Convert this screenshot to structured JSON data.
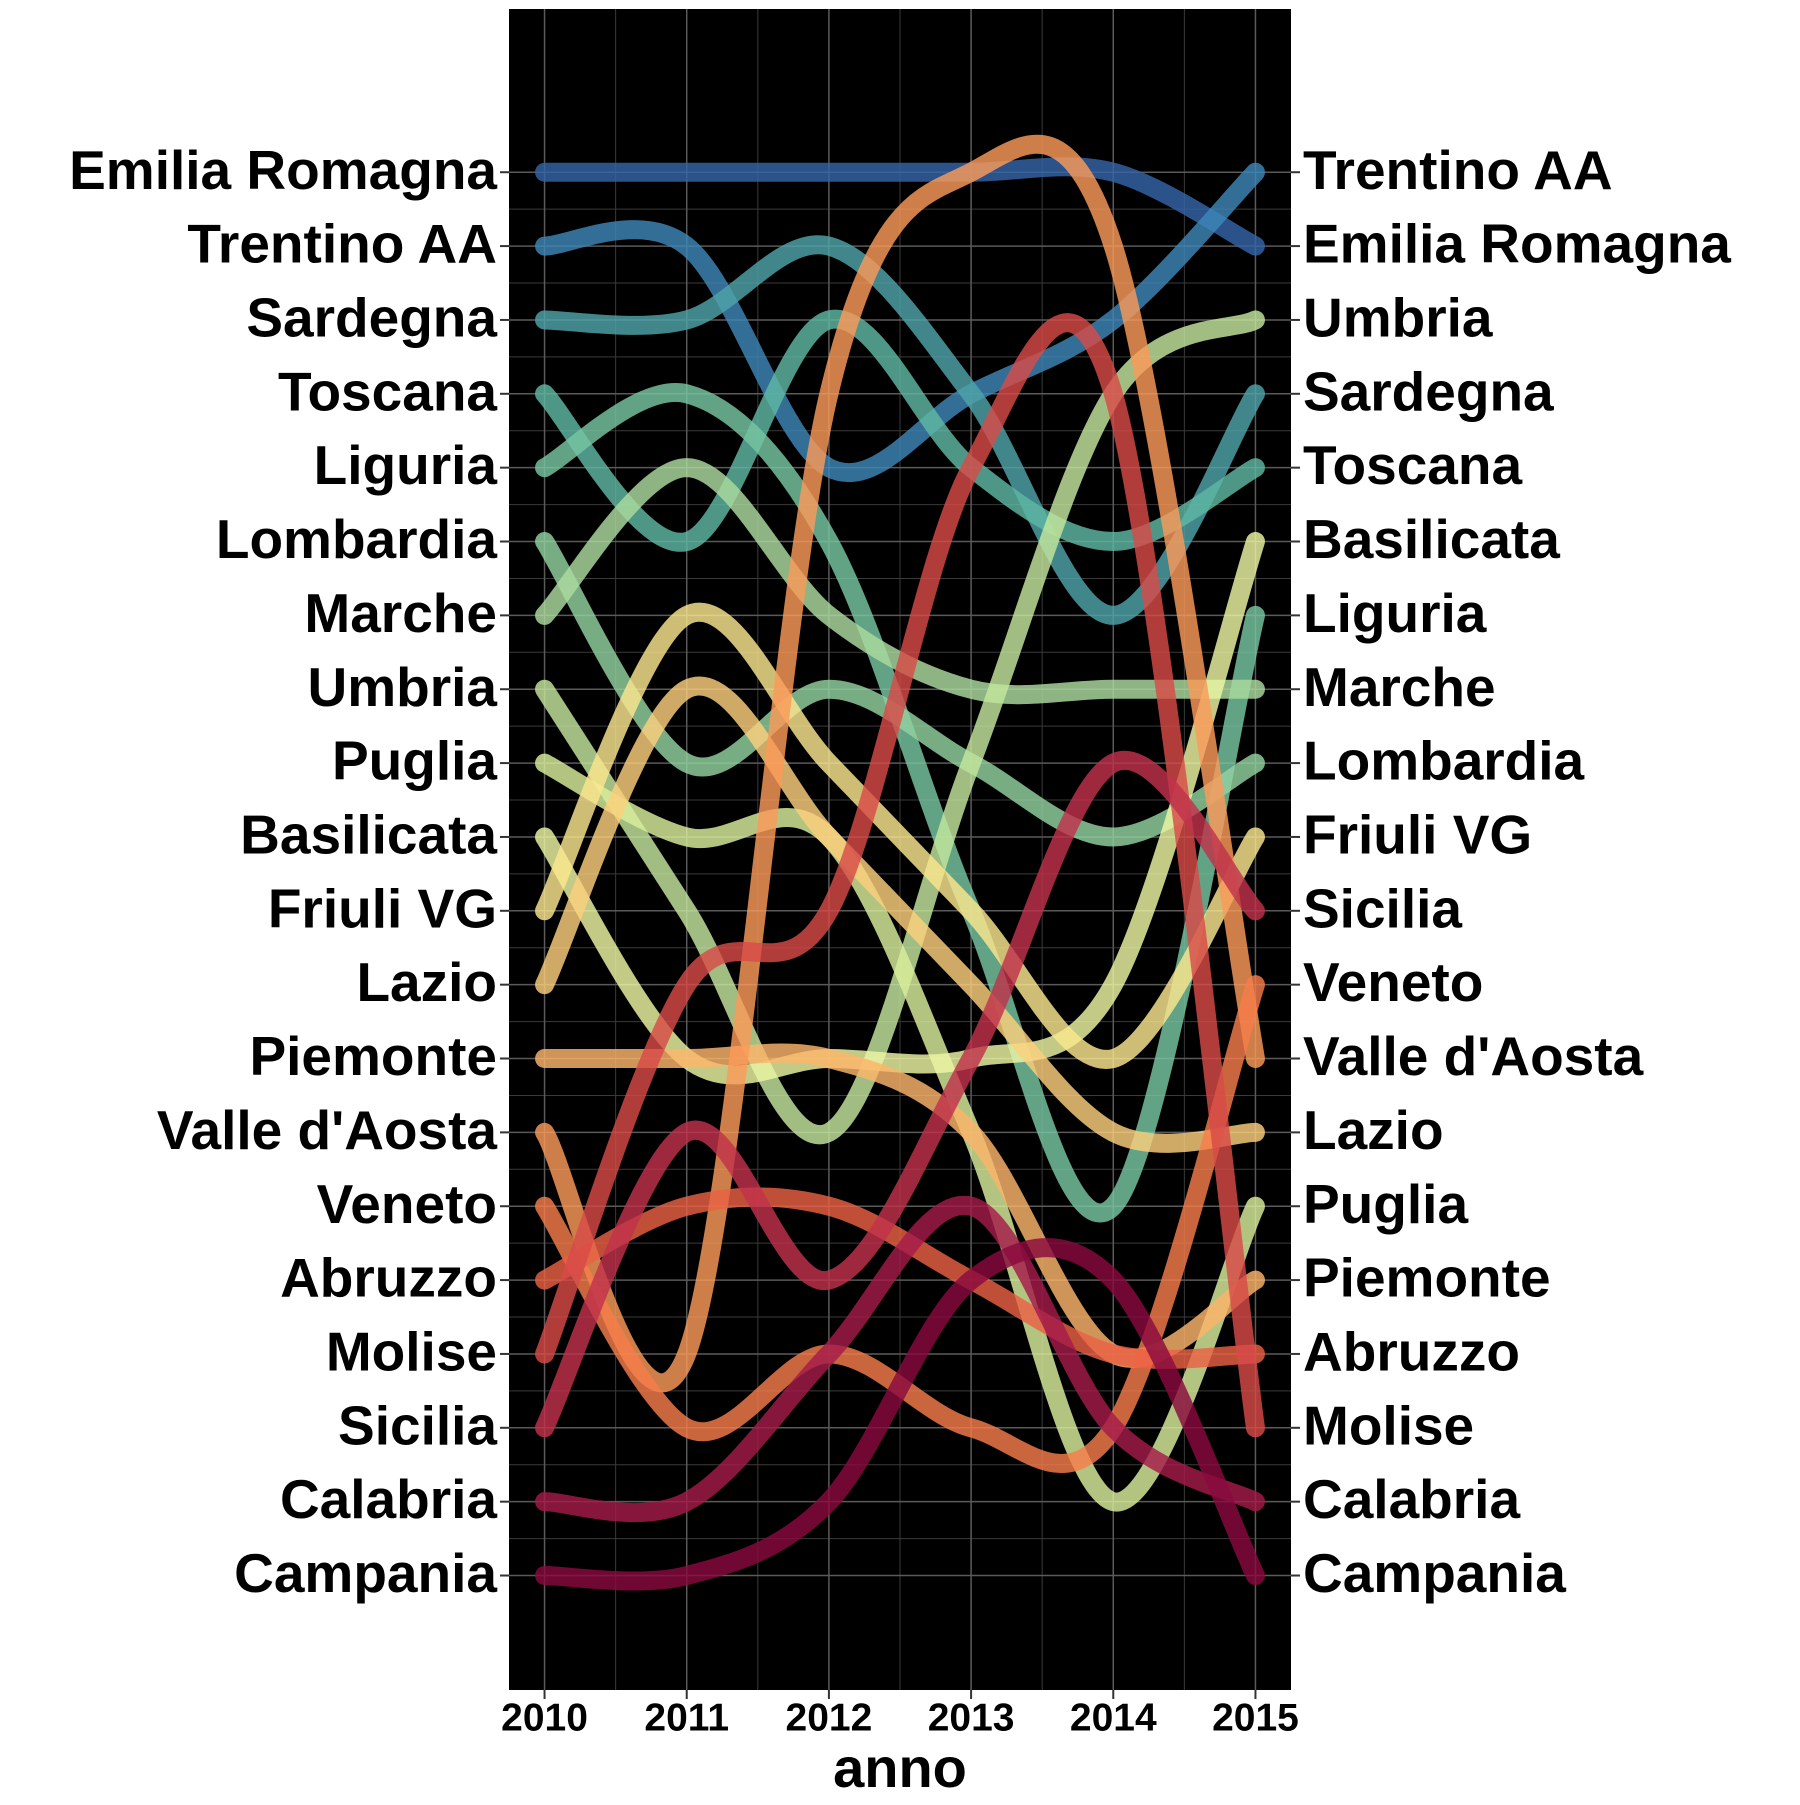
{
  "chart_data": {
    "type": "bump",
    "x_label": "anno",
    "x": [
      2010,
      2011,
      2012,
      2013,
      2014,
      2015
    ],
    "xlim": [
      2009.75,
      2015.25
    ],
    "xticks": [
      2010,
      2011,
      2012,
      2013,
      2014,
      2015
    ],
    "ylim": [
      21.55,
      -1.21
    ],
    "yticks": [
      {
        "value": 1,
        "label": "Emilia Romagna"
      },
      {
        "value": 2,
        "label": "Trentino AA"
      },
      {
        "value": 3,
        "label": "Sardegna"
      },
      {
        "value": 4,
        "label": "Toscana"
      },
      {
        "value": 5,
        "label": "Liguria"
      },
      {
        "value": 6,
        "label": "Lombardia"
      },
      {
        "value": 7,
        "label": "Marche"
      },
      {
        "value": 8,
        "label": "Umbria"
      },
      {
        "value": 9,
        "label": "Puglia"
      },
      {
        "value": 10,
        "label": "Basilicata"
      },
      {
        "value": 11,
        "label": "Friuli VG"
      },
      {
        "value": 12,
        "label": "Lazio"
      },
      {
        "value": 13,
        "label": "Piemonte"
      },
      {
        "value": 14,
        "label": "Valle d'Aosta"
      },
      {
        "value": 15,
        "label": "Veneto"
      },
      {
        "value": 16,
        "label": "Abruzzo"
      },
      {
        "value": 17,
        "label": "Molise"
      },
      {
        "value": 18,
        "label": "Sicilia"
      },
      {
        "value": 19,
        "label": "Calabria"
      },
      {
        "value": 20,
        "label": "Campania"
      }
    ],
    "y2lim": [
      21.55,
      -1.21
    ],
    "y2ticks": [
      {
        "value": 1,
        "label": "Trentino AA"
      },
      {
        "value": 2,
        "label": "Emilia Romagna"
      },
      {
        "value": 3,
        "label": "Umbria"
      },
      {
        "value": 4,
        "label": "Sardegna"
      },
      {
        "value": 5,
        "label": "Toscana"
      },
      {
        "value": 6,
        "label": "Basilicata"
      },
      {
        "value": 7,
        "label": "Liguria"
      },
      {
        "value": 8,
        "label": "Marche"
      },
      {
        "value": 9,
        "label": "Lombardia"
      },
      {
        "value": 10,
        "label": "Friuli VG"
      },
      {
        "value": 11,
        "label": "Sicilia"
      },
      {
        "value": 12,
        "label": "Veneto"
      },
      {
        "value": 13,
        "label": "Valle d'Aosta"
      },
      {
        "value": 14,
        "label": "Lazio"
      },
      {
        "value": 15,
        "label": "Puglia"
      },
      {
        "value": 16,
        "label": "Piemonte"
      },
      {
        "value": 17,
        "label": "Abruzzo"
      },
      {
        "value": 18,
        "label": "Molise"
      },
      {
        "value": 19,
        "label": "Calabria"
      },
      {
        "value": 20,
        "label": "Campania"
      }
    ],
    "grid": true,
    "background": "#000000",
    "series": [
      {
        "name": "Emilia Romagna",
        "color": "#3565a8",
        "values": [
          1,
          1,
          1,
          1,
          1,
          2
        ]
      },
      {
        "name": "Trentino AA",
        "color": "#3e86b8",
        "values": [
          2,
          2,
          5,
          4,
          3,
          1
        ]
      },
      {
        "name": "Sardegna",
        "color": "#4fa3a8",
        "values": [
          3,
          3,
          2,
          4,
          7,
          4
        ]
      },
      {
        "name": "Toscana",
        "color": "#5fb8a4",
        "values": [
          4,
          6,
          3,
          5,
          6,
          5
        ]
      },
      {
        "name": "Liguria",
        "color": "#78c6a2",
        "values": [
          5,
          4,
          6,
          11,
          15,
          7
        ]
      },
      {
        "name": "Lombardia",
        "color": "#93d2a0",
        "values": [
          6,
          9,
          8,
          9,
          10,
          9
        ]
      },
      {
        "name": "Marche",
        "color": "#acdc9f",
        "values": [
          7,
          5,
          7,
          8,
          8,
          8
        ]
      },
      {
        "name": "Umbria",
        "color": "#c4e69e",
        "values": [
          8,
          11,
          14,
          9,
          4,
          3
        ]
      },
      {
        "name": "Puglia",
        "color": "#dbef9c",
        "values": [
          9,
          10,
          10,
          14,
          19,
          15
        ]
      },
      {
        "name": "Basilicata",
        "color": "#eef6a4",
        "values": [
          10,
          13,
          13,
          13,
          12,
          6
        ]
      },
      {
        "name": "Friuli VG",
        "color": "#fbe68e",
        "values": [
          11,
          7,
          9,
          11,
          13,
          10
        ]
      },
      {
        "name": "Lazio",
        "color": "#fdd07c",
        "values": [
          12,
          8,
          10,
          12,
          14,
          14
        ]
      },
      {
        "name": "Piemonte",
        "color": "#fdb56a",
        "values": [
          13,
          13,
          13,
          14,
          17,
          16
        ]
      },
      {
        "name": "Valle d'Aosta",
        "color": "#fb9a59",
        "values": [
          14,
          17,
          4,
          1,
          2,
          13
        ]
      },
      {
        "name": "Veneto",
        "color": "#f67c4a",
        "values": [
          15,
          18,
          17,
          18,
          18,
          12
        ]
      },
      {
        "name": "Abruzzo",
        "color": "#ea6044",
        "values": [
          16,
          15,
          15,
          16,
          17,
          17
        ]
      },
      {
        "name": "Molise",
        "color": "#d84a48",
        "values": [
          17,
          12,
          11,
          5,
          4,
          18
        ]
      },
      {
        "name": "Sicilia",
        "color": "#c1324c",
        "values": [
          18,
          14,
          16,
          13,
          9,
          11
        ]
      },
      {
        "name": "Calabria",
        "color": "#a51b4a",
        "values": [
          19,
          19,
          17,
          15,
          18,
          19
        ]
      },
      {
        "name": "Campania",
        "color": "#8a0a3e",
        "values": [
          20,
          20,
          19,
          16,
          16,
          20
        ]
      }
    ]
  }
}
